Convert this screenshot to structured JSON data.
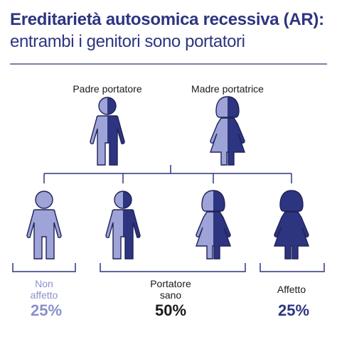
{
  "title": "Ereditarietà autosomica recessiva (AR):",
  "subtitle": "entrambi i genitori sono portatori",
  "parents": {
    "father_label": "Padre portatore",
    "mother_label": "Madre portatrice"
  },
  "outcomes": {
    "unaffected": {
      "line1": "Non",
      "line2": "affetto",
      "percent": "25%"
    },
    "carrier": {
      "line1": "Portatore",
      "line2": "sano",
      "percent": "50%"
    },
    "affected": {
      "label": "Affetto",
      "percent": "25%"
    }
  },
  "colors": {
    "title": "#2d3580",
    "dark": "#2d3580",
    "light": "#9ea4d8",
    "outline": "#1e2257",
    "line": "#2d3580",
    "unaffected_text": "#8a8fcc",
    "percent_dark": "#1a1a1a",
    "percent_blue": "#2d3580"
  },
  "icons": [
    "male-carrier-icon",
    "female-carrier-icon",
    "male-unaffected-icon",
    "male-carrier-icon",
    "female-carrier-icon",
    "female-affected-icon"
  ]
}
